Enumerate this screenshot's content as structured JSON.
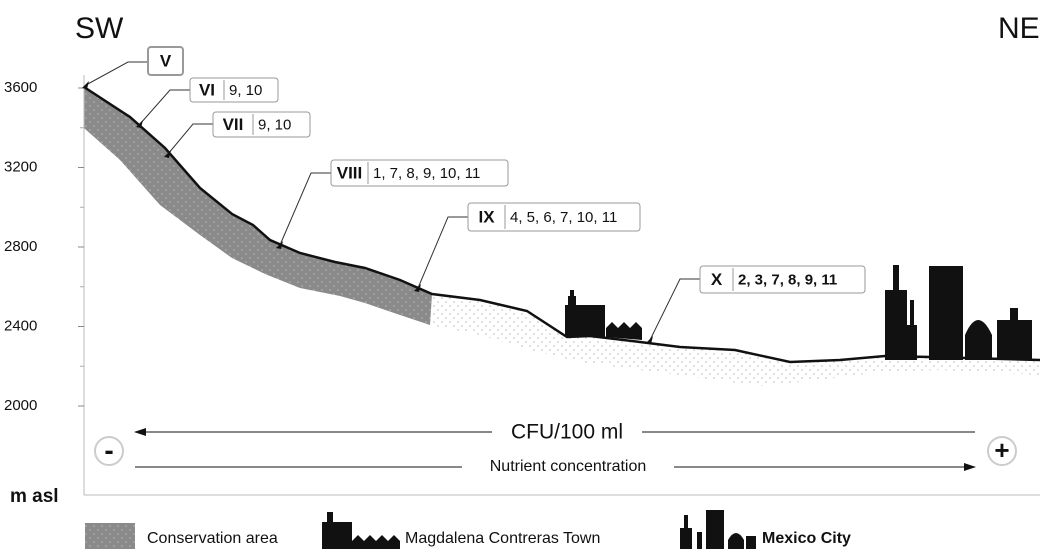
{
  "header": {
    "left": "SW",
    "right": "NE"
  },
  "axis": {
    "label": "m asl",
    "ticks": [
      3600,
      3200,
      2800,
      2400,
      2000
    ]
  },
  "zones": [
    {
      "id": "V"
    },
    {
      "id": "VI",
      "refs": "9, 10"
    },
    {
      "id": "VII",
      "refs": "9, 10"
    },
    {
      "id": "VIII",
      "refs": "1, 7, 8, 9, 10, 11"
    },
    {
      "id": "IX",
      "refs": "4, 5, 6, 7, 10, 11"
    },
    {
      "id": "X",
      "refs": "2, 3, 7, 8, 9, 11"
    }
  ],
  "gradient": {
    "top": "CFU/100 ml",
    "bottom": "Nutrient concentration",
    "minus": "-",
    "plus": "+"
  },
  "legend": [
    "Conservation area",
    "Magdalena Contreras Town",
    "Mexico City"
  ]
}
